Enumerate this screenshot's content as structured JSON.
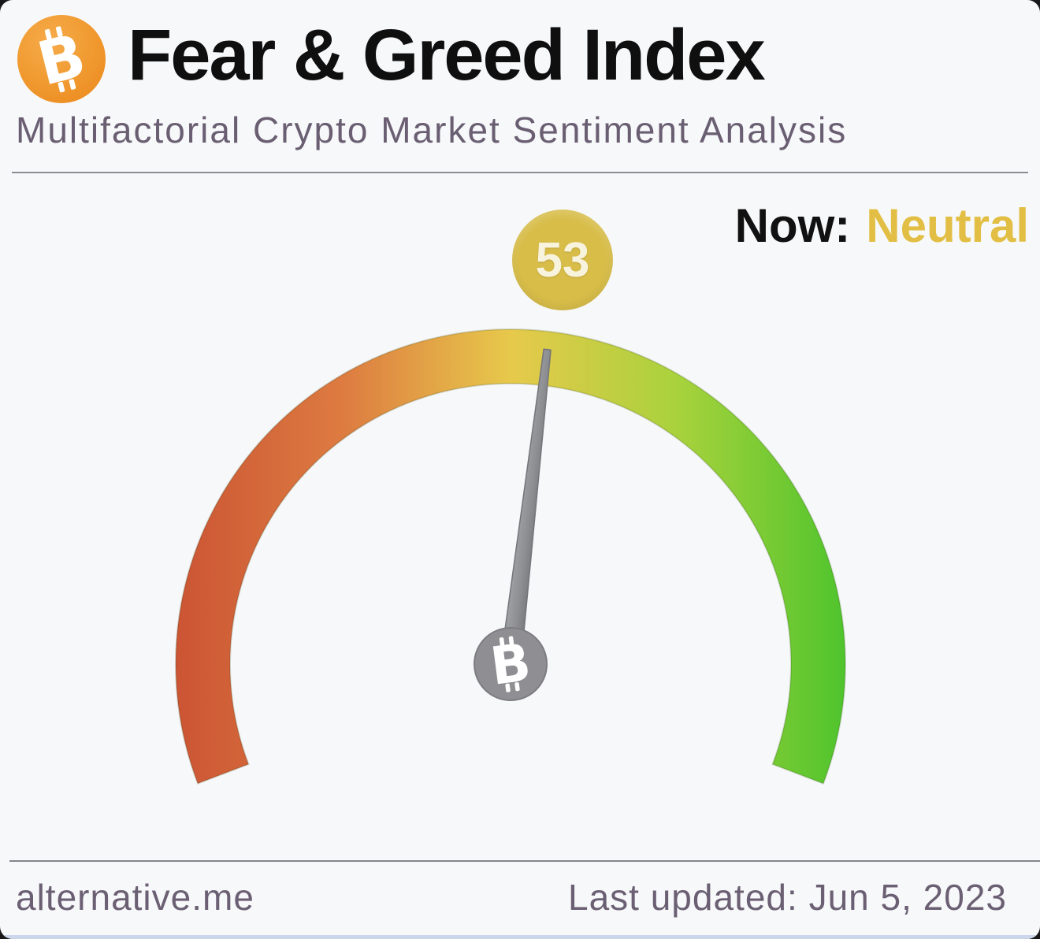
{
  "header": {
    "logo": "bitcoin-icon",
    "title": "Fear & Greed Index",
    "subtitle": "Multifactorial Crypto Market Sentiment Analysis"
  },
  "status": {
    "label": "Now:",
    "value": "Neutral",
    "value_color": "#e2bf44"
  },
  "gauge": {
    "value_badge": "53",
    "badge_color": "#d8bd49",
    "badge_text_color": "#f8f3dc",
    "needle_color": "#8e8f93",
    "needle_edge_color": "#74757a",
    "hub_color": "#8e8e93"
  },
  "footer": {
    "site": "alternative.me",
    "last_updated": "Last updated: Jun 5, 2023"
  },
  "chart_data": {
    "type": "gauge",
    "title": "Fear & Greed Index",
    "subtitle": "Multifactorial Crypto Market Sentiment Analysis",
    "value": 53,
    "min": 0,
    "max": 100,
    "classification": "Neutral",
    "sweep_degrees": 222,
    "scale_colors": [
      "#cb5434",
      "#dd7b41",
      "#e7c94b",
      "#a8d23c",
      "#4fc42d"
    ],
    "scale_color_offsets": [
      0,
      25,
      50,
      75,
      100
    ],
    "last_updated": "Jun 5, 2023",
    "source": "alternative.me",
    "legend_position": "none"
  }
}
